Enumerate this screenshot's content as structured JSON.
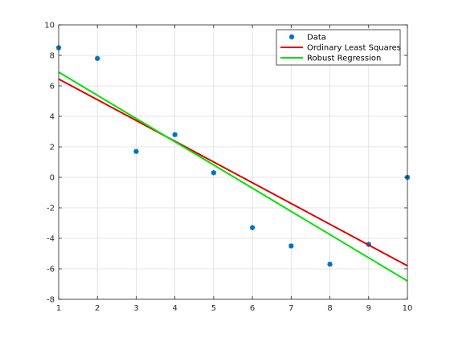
{
  "chart_data": {
    "type": "scatter",
    "title": "",
    "xlabel": "",
    "ylabel": "",
    "xlim": [
      1,
      10
    ],
    "ylim": [
      -8,
      10
    ],
    "x_ticks": [
      1,
      2,
      3,
      4,
      5,
      6,
      7,
      8,
      9,
      10
    ],
    "y_ticks": [
      -8,
      -6,
      -4,
      -2,
      0,
      2,
      4,
      6,
      8,
      10
    ],
    "x_tick_labels": [
      "1",
      "2",
      "3",
      "4",
      "5",
      "6",
      "7",
      "8",
      "9",
      "10"
    ],
    "y_tick_labels": [
      "-8",
      "-6",
      "-4",
      "-2",
      "0",
      "2",
      "4",
      "6",
      "8",
      "10"
    ],
    "grid": true,
    "legend_location": "top-right",
    "series": [
      {
        "name": "Data",
        "kind": "scatter",
        "marker": "star",
        "color": "#0072bd",
        "x": [
          1,
          2,
          3,
          4,
          5,
          6,
          7,
          8,
          9,
          10
        ],
        "y": [
          8.5,
          7.8,
          1.7,
          2.8,
          0.3,
          -3.3,
          -4.5,
          -5.7,
          -4.4,
          0.0
        ]
      },
      {
        "name": "Ordinary Least Squares",
        "kind": "line",
        "color": "#e00000",
        "x": [
          1,
          10
        ],
        "y": [
          6.45,
          -5.8
        ]
      },
      {
        "name": "Robust Regression",
        "kind": "line",
        "color": "#00e000",
        "x": [
          1,
          10
        ],
        "y": [
          6.9,
          -6.8
        ]
      }
    ]
  }
}
